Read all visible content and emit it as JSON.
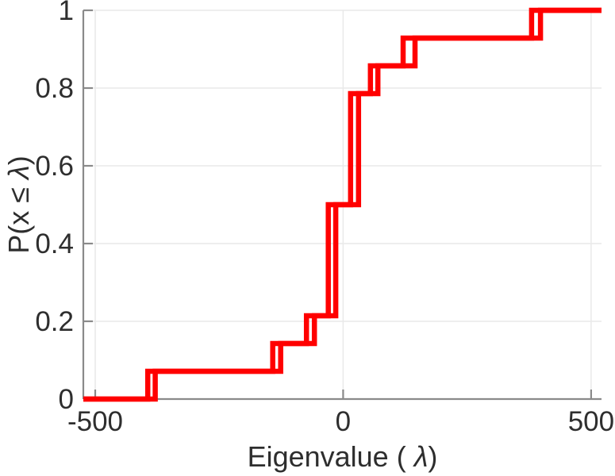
{
  "figure": {
    "background": "#ffffff",
    "title": ""
  },
  "chart_data": {
    "type": "line",
    "subtype": "empirical-cdf-stairs",
    "title": "",
    "xlabel": "Eigenvalue ( λ)",
    "ylabel": "P(x ≤ λ)",
    "xlabel_parts": {
      "prefix": "Eigenvalue ( ",
      "lambda": "λ",
      "suffix": ")"
    },
    "ylabel_parts": {
      "prefix": "P(x ≤ ",
      "lambda": "λ",
      "suffix": ")"
    },
    "xlim": [
      -524,
      521
    ],
    "ylim": [
      0,
      1
    ],
    "x_ticks": [
      -500,
      0,
      500
    ],
    "x_tick_labels": [
      "-500",
      "0",
      "500"
    ],
    "y_ticks": [
      0,
      0.2,
      0.4,
      0.6,
      0.8,
      1
    ],
    "y_tick_labels": [
      "0",
      "0.2",
      "0.4",
      "0.6",
      "0.8",
      "1"
    ],
    "grid": true,
    "legend": null,
    "n_points_per_series": 14,
    "levels": [
      0.0714,
      0.1429,
      0.2143,
      0.5,
      0.7857,
      0.8571,
      0.9286,
      1.0
    ],
    "series": [
      {
        "name": "ecdf-curve-1",
        "jump_x": [
          -394,
          -142,
          -74,
          -30,
          15,
          55,
          121,
          380
        ]
      },
      {
        "name": "ecdf-curve-2",
        "jump_x": [
          -379,
          -126,
          -58,
          -15,
          31,
          70,
          145,
          398
        ]
      }
    ],
    "colors": {
      "line": "#ff0000",
      "axis": "#8a8a8a",
      "grid": "#e9e9e9",
      "tick_label": "#2e2e2e"
    }
  }
}
